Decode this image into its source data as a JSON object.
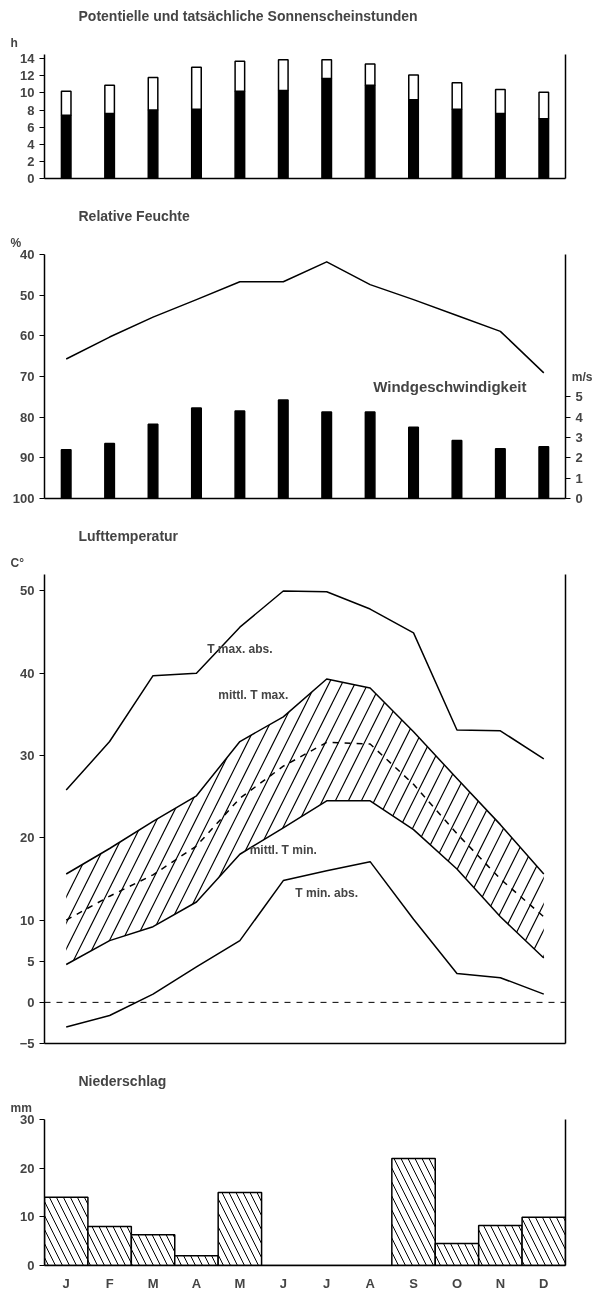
{
  "chart_data": [
    {
      "type": "bar",
      "title": "Potentielle und tatsächliche Sonnenscheinstunden",
      "ylabel": "h",
      "categories": [
        null,
        null,
        null,
        null,
        null,
        null,
        null,
        null,
        null,
        null,
        null,
        null
      ],
      "stacked": true,
      "ylim": [
        0,
        14.5
      ],
      "yticks": [
        0,
        2,
        4,
        6,
        8,
        10,
        12,
        14
      ],
      "tick_labels": "y",
      "series": [
        {
          "color": "#000000",
          "values": [
            7.4,
            7.6,
            8.0,
            8.1,
            10.2,
            10.3,
            11.7,
            10.9,
            9.2,
            8.1,
            7.6,
            7.0
          ]
        },
        {
          "color": "#ffffff",
          "values": [
            2.8,
            3.3,
            3.8,
            4.9,
            3.5,
            3.6,
            2.2,
            2.5,
            2.9,
            3.1,
            2.8,
            3.1
          ]
        }
      ]
    },
    {
      "type": "line",
      "title": "Relative Feuchte",
      "ylabel": "%",
      "y2label": "m/s",
      "categories": [
        null,
        null,
        null,
        null,
        null,
        null,
        null,
        null,
        null,
        null,
        null,
        null
      ],
      "ylim": [
        100,
        40
      ],
      "yticks": [
        40,
        50,
        60,
        70,
        80,
        90,
        100
      ],
      "y2lim": [
        0,
        12
      ],
      "y2ticks": [
        0,
        1,
        2,
        3,
        4,
        5
      ],
      "tick_labels": "y",
      "series": [
        {
          "color": "#000000",
          "values": [
            65.7,
            60.3,
            55.4,
            51.1,
            46.7,
            46.7,
            41.8,
            47.4,
            51.1,
            55.0,
            58.9,
            69.1
          ]
        },
        {
          "type": "bar",
          "name": "Windgeschwindigkeit",
          "axis": "y2",
          "color": "#000000",
          "values": [
            2.4,
            2.7,
            3.65,
            4.45,
            4.3,
            4.85,
            4.25,
            4.25,
            3.5,
            2.85,
            2.45,
            2.55
          ]
        }
      ]
    },
    {
      "type": "line",
      "title": "Lufttemperatur",
      "ylabel": "C°",
      "categories": [
        null,
        null,
        null,
        null,
        null,
        null,
        null,
        null,
        null,
        null,
        null,
        null
      ],
      "ylim": [
        -5,
        52
      ],
      "yticks": [
        -5,
        0,
        5,
        10,
        20,
        30,
        40,
        50
      ],
      "tick_labels": "y",
      "ref_lines": [
        {
          "axis": "y",
          "value": 0,
          "line_style": "dashed",
          "color": "#000000"
        }
      ],
      "series": [
        {
          "name": "T max. abs.",
          "color": "#000000",
          "values": [
            25.8,
            31.7,
            39.7,
            40.0,
            45.6,
            50.0,
            49.9,
            47.8,
            44.9,
            33.1,
            33.0,
            29.6
          ]
        },
        {
          "name": "mittl. T max.",
          "color": "#000000",
          "values": [
            15.6,
            18.7,
            22.0,
            25.1,
            31.7,
            34.7,
            39.3,
            38.2,
            32.9,
            27.2,
            21.6,
            15.6
          ]
        },
        {
          "color": "#000000",
          "line_style": "dashed",
          "values": [
            10.0,
            12.9,
            15.5,
            19.0,
            24.8,
            28.7,
            31.6,
            31.4,
            26.5,
            20.5,
            15.0,
            10.4
          ],
          "lower": [
            4.6,
            7.5,
            9.2,
            12.2,
            18.0,
            21.2,
            24.5,
            24.5,
            21.0,
            16.2,
            10.4,
            5.4
          ],
          "upper": [
            15.6,
            18.7,
            22.0,
            25.1,
            31.7,
            34.7,
            39.3,
            38.2,
            32.9,
            27.2,
            21.6,
            15.6
          ]
        },
        {
          "name": "mittl. T min.",
          "color": "#000000",
          "values": [
            4.6,
            7.5,
            9.2,
            12.2,
            18.0,
            21.2,
            24.5,
            24.5,
            21.0,
            16.2,
            10.4,
            5.4
          ]
        },
        {
          "name": "T min. abs.",
          "color": "#000000",
          "values": [
            -3.0,
            -1.6,
            1.0,
            4.3,
            7.5,
            14.8,
            16.0,
            17.1,
            10.1,
            3.5,
            3.0,
            1.0
          ]
        }
      ]
    },
    {
      "type": "bar",
      "title": "Niederschlag",
      "ylabel": "mm",
      "categories": [
        "J",
        "F",
        "M",
        "A",
        "M",
        "J",
        "J",
        "A",
        "S",
        "O",
        "N",
        "D"
      ],
      "values": [
        14.0,
        8.0,
        6.3,
        2.0,
        15.0,
        0,
        0,
        0,
        22.0,
        4.5,
        8.2,
        9.9
      ],
      "colors": [
        "#ffffff",
        "#ffffff",
        "#ffffff",
        "#ffffff",
        "#ffffff",
        "#ffffff",
        "#ffffff",
        "#ffffff",
        "#ffffff",
        "#ffffff",
        "#ffffff",
        "#ffffff"
      ],
      "ylim": [
        0,
        30
      ],
      "yticks": [
        0,
        10,
        20,
        30
      ]
    }
  ]
}
